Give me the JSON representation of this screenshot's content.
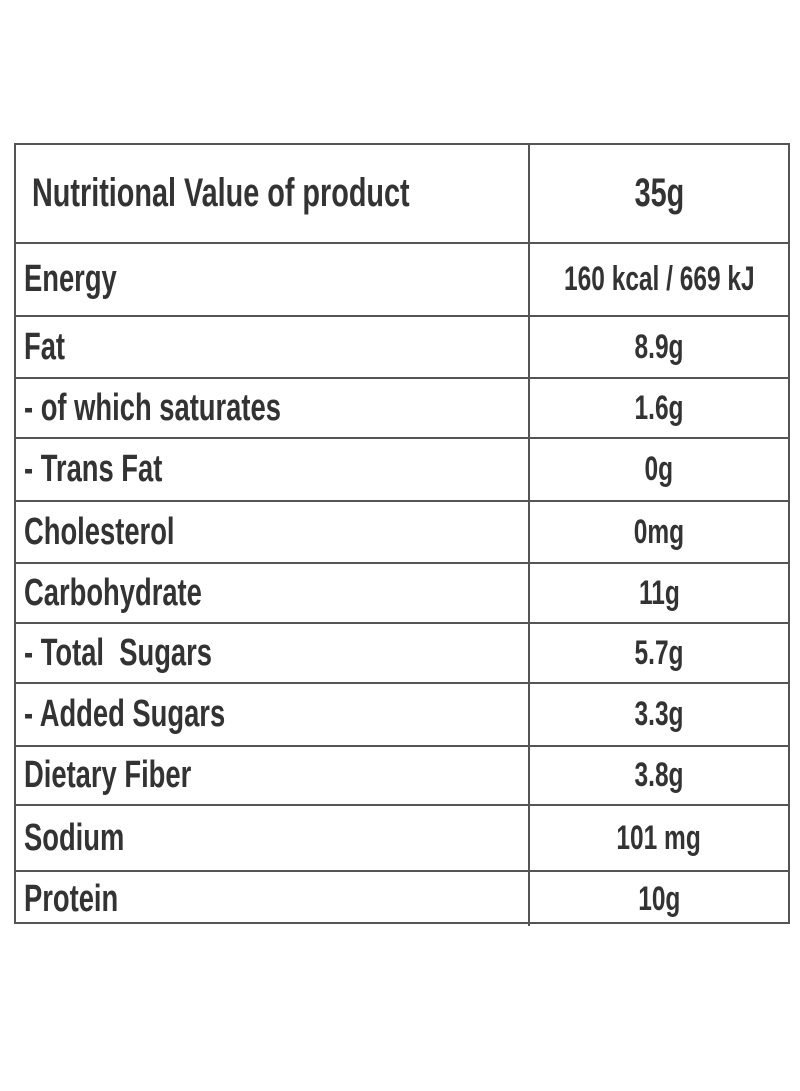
{
  "table": {
    "header": [
      "Nutritional Value of product",
      "35g"
    ],
    "rows": [
      [
        "Energy",
        "160 kcal / 669 kJ"
      ],
      [
        "Fat",
        "8.9g"
      ],
      [
        "- of which saturates",
        "1.6g"
      ],
      [
        "- Trans Fat",
        "0g"
      ],
      [
        "Cholesterol",
        "0mg"
      ],
      [
        "Carbohydrate",
        "11g"
      ],
      [
        "- Total  Sugars",
        "5.7g"
      ],
      [
        "- Added Sugars",
        "3.3g"
      ],
      [
        "Dietary Fiber",
        "3.8g"
      ],
      [
        "Sodium",
        "101 mg"
      ],
      [
        "Protein",
        "10g"
      ]
    ]
  }
}
